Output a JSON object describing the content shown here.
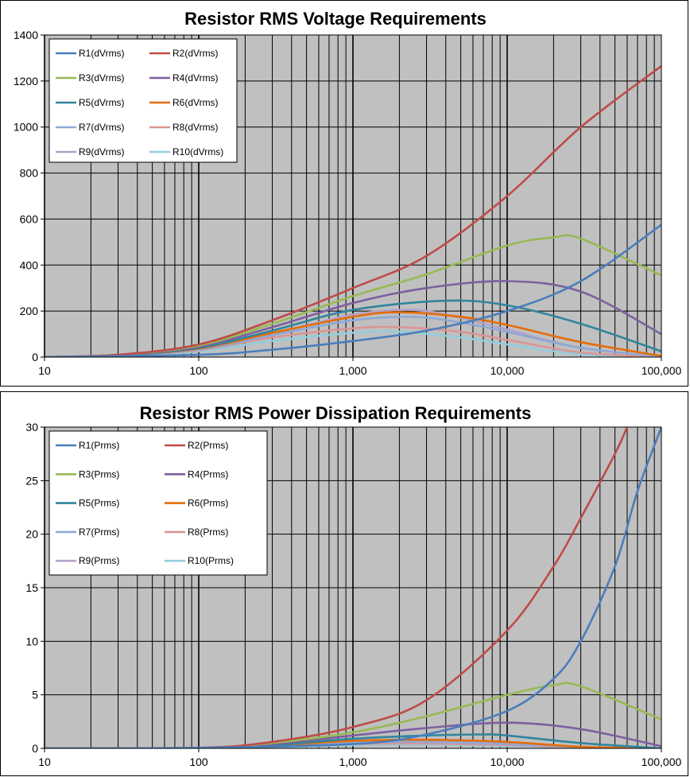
{
  "chart_data": [
    {
      "type": "line",
      "title": "Resistor RMS Voltage Requirements",
      "x_scale": "log",
      "xlim": [
        10,
        100000
      ],
      "ylim": [
        0,
        1400
      ],
      "x_ticks": [
        "10",
        "100",
        "1,000",
        "10,000",
        "100,000"
      ],
      "y_ticks": [
        "0",
        "200",
        "400",
        "600",
        "800",
        "1000",
        "1200",
        "1400"
      ],
      "grid": true,
      "plot_background": "#c0c0c0",
      "legend_position": "top-left",
      "series": [
        {
          "name": "R1(dVrms)",
          "color": "#4a7ebb",
          "x": [
            10,
            100,
            300,
            1000,
            3000,
            10000,
            30000,
            100000
          ],
          "y": [
            0,
            10,
            32,
            70,
            115,
            200,
            330,
            575
          ]
        },
        {
          "name": "R2(dVrms)",
          "color": "#be4b48",
          "x": [
            10,
            30,
            100,
            300,
            1000,
            3000,
            10000,
            30000,
            100000
          ],
          "y": [
            0,
            10,
            55,
            160,
            300,
            440,
            700,
            1000,
            1265
          ]
        },
        {
          "name": "R3(dVrms)",
          "color": "#98b954",
          "x": [
            10,
            30,
            100,
            300,
            1000,
            3000,
            10000,
            20000,
            30000,
            100000
          ],
          "y": [
            0,
            10,
            50,
            145,
            265,
            360,
            485,
            520,
            515,
            355
          ]
        },
        {
          "name": "R4(dVrms)",
          "color": "#7d60a0",
          "x": [
            10,
            30,
            100,
            300,
            1000,
            3000,
            10000,
            30000,
            100000
          ],
          "y": [
            0,
            10,
            45,
            130,
            235,
            300,
            330,
            285,
            100
          ]
        },
        {
          "name": "R5(dVrms)",
          "color": "#31859c",
          "x": [
            10,
            30,
            100,
            300,
            1000,
            4000,
            10000,
            30000,
            100000
          ],
          "y": [
            0,
            8,
            40,
            115,
            205,
            245,
            225,
            145,
            25
          ]
        },
        {
          "name": "R6(dVrms)",
          "color": "#e46c0a",
          "x": [
            10,
            30,
            100,
            300,
            1000,
            2000,
            5000,
            10000,
            30000,
            100000
          ],
          "y": [
            0,
            8,
            37,
            105,
            175,
            195,
            175,
            140,
            65,
            5
          ]
        },
        {
          "name": "R7(dVrms)",
          "color": "#8fa9d6",
          "x": [
            10,
            30,
            100,
            300,
            1000,
            2500,
            5000,
            10000,
            30000,
            100000
          ],
          "y": [
            0,
            7,
            33,
            95,
            160,
            175,
            150,
            110,
            40,
            2
          ]
        },
        {
          "name": "R8(dVrms)",
          "color": "#d99694",
          "x": [
            10,
            30,
            100,
            300,
            1000,
            2000,
            5000,
            10000,
            30000,
            100000
          ],
          "y": [
            0,
            6,
            30,
            85,
            125,
            130,
            110,
            75,
            20,
            0
          ]
        },
        {
          "name": "R9(dVrms)",
          "color": "#b3a2c7",
          "x": [
            10,
            30,
            100,
            300,
            1000,
            2500,
            5000,
            10000,
            30000,
            100000
          ],
          "y": [
            0,
            6,
            35,
            100,
            185,
            205,
            170,
            120,
            40,
            2
          ]
        },
        {
          "name": "R10(dVrms)",
          "color": "#93cddd",
          "x": [
            10,
            30,
            100,
            300,
            1000,
            2000,
            5000,
            10000,
            30000,
            100000
          ],
          "y": [
            0,
            5,
            25,
            70,
            105,
            110,
            85,
            55,
            12,
            0
          ]
        }
      ]
    },
    {
      "type": "line",
      "title": "Resistor RMS Power Dissipation Requirements",
      "x_scale": "log",
      "xlim": [
        10,
        100000
      ],
      "ylim": [
        0,
        30
      ],
      "x_ticks": [
        "10",
        "100",
        "1,000",
        "10,000",
        "100,000"
      ],
      "y_ticks": [
        "0",
        "5",
        "10",
        "15",
        "20",
        "25",
        "30"
      ],
      "grid": true,
      "plot_background": "#c0c0c0",
      "legend_position": "top-left",
      "series": [
        {
          "name": "R1(Prms)",
          "color": "#4a7ebb",
          "x": [
            10,
            100,
            1000,
            3000,
            10000,
            20000,
            30000,
            50000,
            70000,
            100000
          ],
          "y": [
            0,
            0.05,
            0.4,
            1.3,
            3.5,
            6.5,
            10,
            17,
            24,
            30
          ]
        },
        {
          "name": "R2(Prms)",
          "color": "#be4b48",
          "x": [
            10,
            100,
            300,
            1000,
            3000,
            10000,
            20000,
            30000,
            50000,
            60000
          ],
          "y": [
            0,
            0.05,
            0.6,
            2,
            4.5,
            11,
            17,
            21.5,
            27.5,
            30
          ]
        },
        {
          "name": "R3(Prms)",
          "color": "#98b954",
          "x": [
            10,
            100,
            300,
            1000,
            3000,
            10000,
            20000,
            30000,
            100000
          ],
          "y": [
            0,
            0.05,
            0.5,
            1.5,
            3,
            5,
            5.9,
            5.8,
            2.7
          ]
        },
        {
          "name": "R4(Prms)",
          "color": "#7d60a0",
          "x": [
            10,
            100,
            300,
            1000,
            3000,
            10000,
            30000,
            100000
          ],
          "y": [
            0,
            0.04,
            0.4,
            1.2,
            1.9,
            2.4,
            1.8,
            0.2
          ]
        },
        {
          "name": "R5(Prms)",
          "color": "#31859c",
          "x": [
            10,
            100,
            300,
            1000,
            3000,
            7000,
            10000,
            30000,
            100000
          ],
          "y": [
            0,
            0.03,
            0.3,
            0.9,
            1.2,
            1.3,
            1.2,
            0.5,
            0
          ]
        },
        {
          "name": "R6(Prms)",
          "color": "#e46c0a",
          "x": [
            10,
            100,
            300,
            1000,
            3000,
            10000,
            30000,
            100000
          ],
          "y": [
            0,
            0.02,
            0.25,
            0.7,
            0.8,
            0.6,
            0.15,
            0
          ]
        },
        {
          "name": "R7(Prms)",
          "color": "#8fa9d6",
          "x": [
            10,
            100,
            300,
            1000,
            3000,
            10000,
            30000,
            100000
          ],
          "y": [
            0,
            0.02,
            0.2,
            0.55,
            0.6,
            0.4,
            0.1,
            0
          ]
        },
        {
          "name": "R8(Prms)",
          "color": "#d99694",
          "x": [
            10,
            100,
            300,
            1000,
            3000,
            10000,
            30000,
            100000
          ],
          "y": [
            0,
            0.02,
            0.15,
            0.4,
            0.45,
            0.3,
            0.05,
            0
          ]
        },
        {
          "name": "R9(Prms)",
          "color": "#b3a2c7",
          "x": [
            10,
            100,
            300,
            1000,
            3000,
            10000,
            30000,
            100000
          ],
          "y": [
            0,
            0.02,
            0.2,
            0.6,
            0.65,
            0.45,
            0.1,
            0
          ]
        },
        {
          "name": "R10(Prms)",
          "color": "#93cddd",
          "x": [
            10,
            100,
            300,
            1000,
            3000,
            10000,
            30000,
            100000
          ],
          "y": [
            0,
            0.01,
            0.1,
            0.3,
            0.35,
            0.2,
            0.03,
            0
          ]
        }
      ]
    }
  ]
}
